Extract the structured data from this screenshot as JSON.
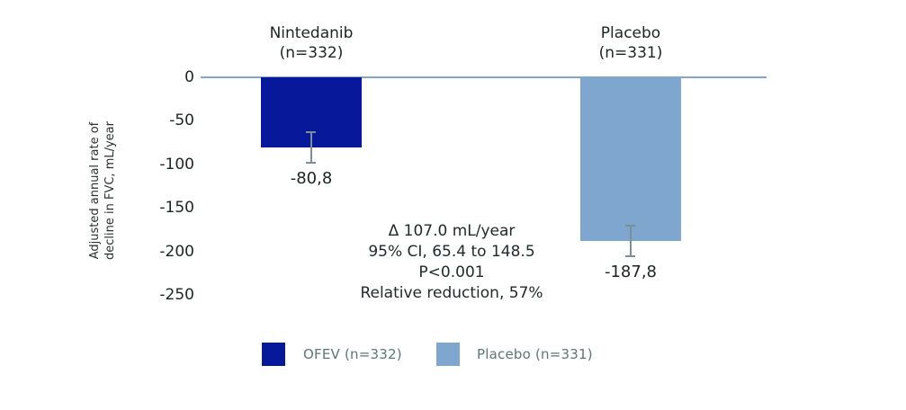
{
  "chart_data": {
    "type": "bar",
    "title": "",
    "ylabel": "Adjusted annual rate of decline in FVC, mL/year",
    "ylabel_lines": [
      "Adjusted annual rate of",
      "decline in FVC, mL/year"
    ],
    "ylim": [
      -250,
      0
    ],
    "yticks": [
      0,
      -50,
      -100,
      -150,
      -200,
      -250
    ],
    "ytick_labels": [
      "0",
      "-50",
      "-100",
      "-150",
      "-200",
      "-250"
    ],
    "grid": false,
    "baseline_value": 0,
    "categories": [
      "Nintedanib (n=332)",
      "Placebo (n=331)"
    ],
    "bars": [
      {
        "category_line1": "Nintedanib",
        "category_line2": "(n=332)",
        "value": -80.8,
        "value_label": "-80,8",
        "error": 19,
        "color": "#08189B",
        "legend_label": "OFEV (n=332)"
      },
      {
        "category_line1": "Placebo",
        "category_line2": "(n=331)",
        "value": -187.8,
        "value_label": "-187,8",
        "error": 19,
        "color": "#7EA6CE",
        "legend_label": "Placebo (n=331)"
      }
    ],
    "annotation_lines": [
      "Δ 107.0 mL/year",
      "95% CI, 65.4 to 148.5",
      "P<0.001",
      "Relative reduction, 57%"
    ],
    "legend": {
      "position": "bottom",
      "entries": [
        "OFEV (n=332)",
        "Placebo (n=331)"
      ]
    }
  },
  "colors": {
    "nintedanib_bar": "#08189B",
    "placebo_bar": "#7EA6CE",
    "baseline": "#7FA7D2",
    "error_bar": "#7E8E95",
    "legend_text": "#5D7674",
    "text": "#1C2424"
  }
}
